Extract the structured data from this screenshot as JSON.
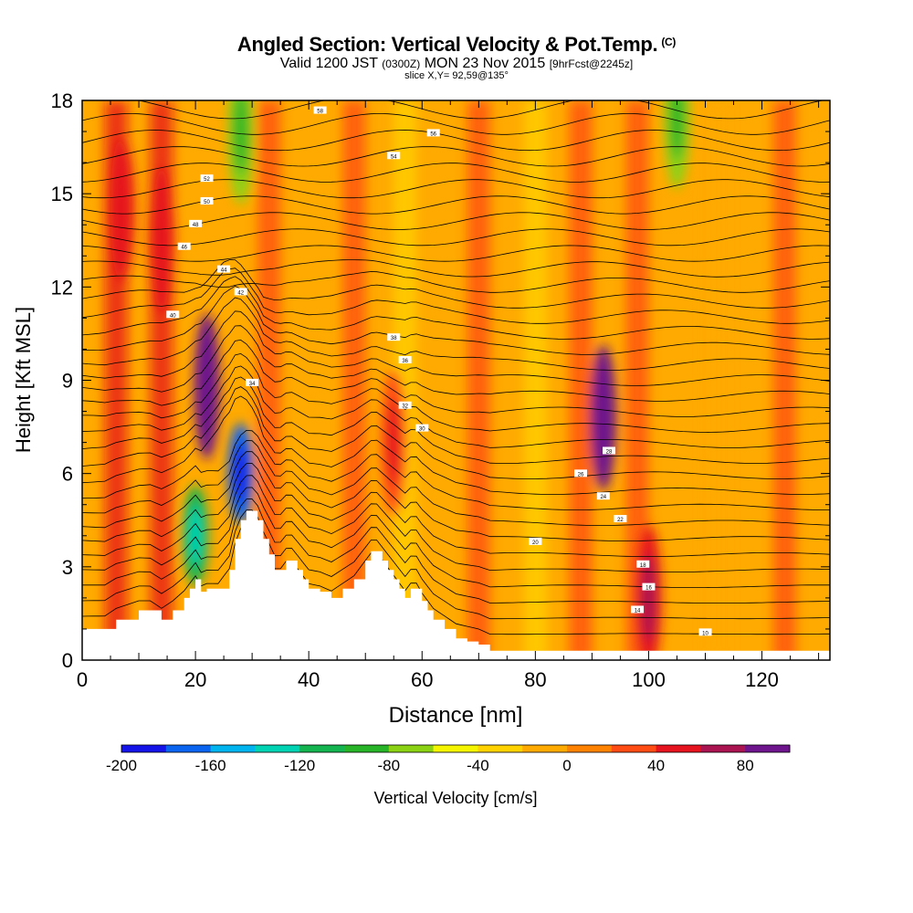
{
  "title": {
    "main": "Angled Section: Vertical Velocity & Pot.Temp.",
    "main_units": "(C)",
    "valid_prefix": "Valid 1200 JST",
    "valid_utc": "(0300Z)",
    "valid_date": "MON 23 Nov 2015",
    "valid_fcst": "[9hrFcst@2245z]",
    "slice": "slice X,Y= 92,59@135°"
  },
  "chart_data": {
    "type": "heatmap",
    "xlabel": "Distance [nm]",
    "ylabel": "Height [Kft MSL]",
    "xlim": [
      0,
      132
    ],
    "ylim": [
      0,
      18
    ],
    "x_ticks": [
      0,
      20,
      40,
      60,
      80,
      100,
      120
    ],
    "y_ticks": [
      0,
      3,
      6,
      9,
      12,
      15,
      18
    ],
    "colorbar": {
      "label": "Vertical Velocity [cm/s]",
      "ticks": [
        -200,
        -160,
        -120,
        -80,
        -40,
        0,
        40,
        80
      ],
      "levels": [
        -200,
        -180,
        -160,
        -140,
        -120,
        -100,
        -80,
        -60,
        -40,
        -20,
        0,
        20,
        40,
        60,
        80,
        100
      ],
      "colors": [
        "#1414e8",
        "#0a64f0",
        "#00b4f0",
        "#00d2b4",
        "#14b450",
        "#28b428",
        "#8cd214",
        "#f5f500",
        "#ffd200",
        "#ffaa00",
        "#ff8200",
        "#ff4b14",
        "#e6141e",
        "#aa1450",
        "#6e148c"
      ]
    },
    "terrain_kft": {
      "x": [
        0,
        4,
        6,
        10,
        12,
        14,
        16,
        18,
        19,
        20,
        21,
        22,
        24,
        26,
        27,
        28,
        29,
        30,
        31,
        32,
        33,
        34,
        35,
        36,
        37,
        38,
        39,
        40,
        42,
        44,
        46,
        48,
        50,
        51,
        52,
        53,
        54,
        55,
        56,
        57,
        58,
        59,
        60,
        61,
        62,
        64,
        66,
        68,
        70,
        72,
        74,
        76,
        80,
        90,
        100,
        110,
        120,
        132
      ],
      "height": [
        1.0,
        1.0,
        1.3,
        1.6,
        1.6,
        1.3,
        1.6,
        2.0,
        2.3,
        2.6,
        2.2,
        2.3,
        2.3,
        2.9,
        3.9,
        4.5,
        4.8,
        4.8,
        4.5,
        3.9,
        3.4,
        2.9,
        2.9,
        3.2,
        3.2,
        2.9,
        2.6,
        2.3,
        2.2,
        2.0,
        2.3,
        2.6,
        3.2,
        3.5,
        3.5,
        3.2,
        2.9,
        2.6,
        2.3,
        2.0,
        2.3,
        2.3,
        1.9,
        1.6,
        1.3,
        1.0,
        0.7,
        0.6,
        0.5,
        0.3,
        0.3,
        0.3,
        0.3,
        0.3,
        0.3,
        0.3,
        0.3,
        0.3
      ]
    },
    "isentrope_labels": [
      "10",
      "14",
      "16",
      "18",
      "20",
      "22",
      "24",
      "26",
      "28",
      "30",
      "32",
      "34",
      "36",
      "38",
      "40",
      "42",
      "44",
      "46",
      "48",
      "50",
      "52",
      "54",
      "56",
      "58"
    ],
    "velocity_features": [
      {
        "x": 22,
        "height": 8.8,
        "value": 90
      },
      {
        "x": 92,
        "height": 7.8,
        "value": 90
      },
      {
        "x": 28,
        "height": 6.0,
        "value": -170
      },
      {
        "x": 20,
        "height": 4.0,
        "value": -110
      },
      {
        "x": 7,
        "height": 14.5,
        "value": 40
      },
      {
        "x": 14,
        "height": 13.5,
        "value": 40
      },
      {
        "x": 28,
        "height": 17.0,
        "value": -80
      },
      {
        "x": 105,
        "height": 17.5,
        "value": -70
      },
      {
        "x": 100,
        "height": 2.0,
        "value": 50
      },
      {
        "x": 55,
        "height": 7.0,
        "value": 30
      }
    ]
  }
}
